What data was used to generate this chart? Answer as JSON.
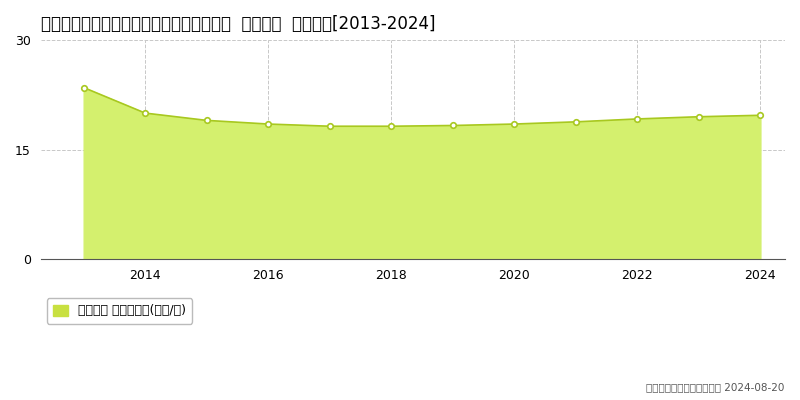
{
  "title": "秋田県秋田市広面字樋ノ没１／ＯＯ番４外  地価公示  地価推移[2013-2024]",
  "years": [
    2013,
    2014,
    2015,
    2016,
    2017,
    2018,
    2019,
    2020,
    2021,
    2022,
    2023,
    2024
  ],
  "values": [
    23.5,
    20.0,
    19.0,
    18.5,
    18.2,
    18.2,
    18.3,
    18.5,
    18.8,
    19.2,
    19.5,
    19.7
  ],
  "ylim": [
    0,
    30
  ],
  "yticks": [
    0,
    15,
    30
  ],
  "xticks": [
    2014,
    2016,
    2018,
    2020,
    2022,
    2024
  ],
  "fill_color": "#d4f06e",
  "line_color": "#a8c820",
  "marker_color": "#ffffff",
  "marker_edge_color": "#a8c820",
  "grid_color": "#c8c8c8",
  "bg_color": "#ffffff",
  "plot_bg_color": "#ffffff",
  "legend_label": "地価公示 平均坪単価(万円/坪)",
  "legend_color": "#c8e040",
  "copyright_text": "（Ｃ）土地価格ドットコム 2024-08-20",
  "title_fontsize": 12,
  "axis_fontsize": 9,
  "legend_fontsize": 9
}
